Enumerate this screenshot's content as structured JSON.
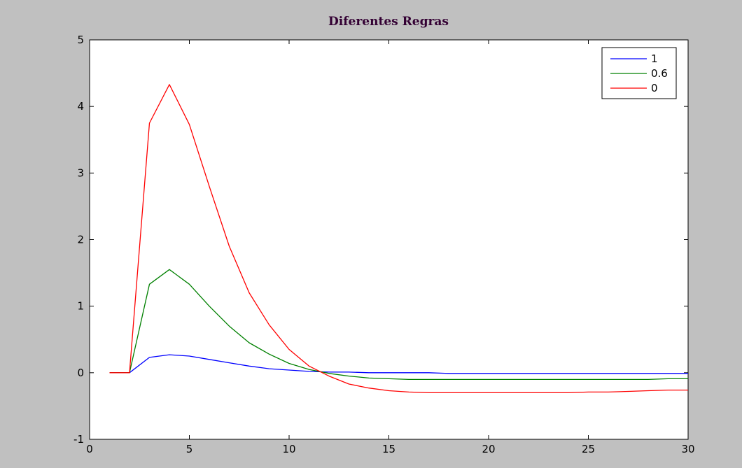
{
  "chart_data": {
    "type": "line",
    "title": "Diferentes Regras",
    "xlabel": "",
    "ylabel": "",
    "xlim": [
      0,
      30
    ],
    "ylim": [
      -1,
      5
    ],
    "xticks": [
      0,
      5,
      10,
      15,
      20,
      25,
      30
    ],
    "xtick_labels": [
      "0",
      "5",
      "10",
      "15",
      "20",
      "25",
      "30"
    ],
    "yticks": [
      -1,
      0,
      1,
      2,
      3,
      4,
      5
    ],
    "ytick_labels": [
      "-1",
      "0",
      "1",
      "2",
      "3",
      "4",
      "5"
    ],
    "grid": false,
    "legend_position": "top-right",
    "x": [
      1,
      2,
      3,
      4,
      5,
      6,
      7,
      8,
      9,
      10,
      11,
      12,
      13,
      14,
      15,
      16,
      17,
      18,
      19,
      20,
      21,
      22,
      23,
      24,
      25,
      26,
      27,
      28,
      29,
      30
    ],
    "series": [
      {
        "name": "1",
        "color": "#0000ff",
        "values": [
          0,
          0,
          0.23,
          0.27,
          0.25,
          0.2,
          0.15,
          0.1,
          0.06,
          0.04,
          0.02,
          0.01,
          0.01,
          0,
          0,
          0,
          0,
          -0.01,
          -0.01,
          -0.01,
          -0.01,
          -0.01,
          -0.01,
          -0.01,
          -0.01,
          -0.01,
          -0.01,
          -0.01,
          -0.01,
          -0.01
        ]
      },
      {
        "name": "0.6",
        "color": "#008000",
        "values": [
          0,
          0,
          1.33,
          1.55,
          1.33,
          1.0,
          0.7,
          0.45,
          0.28,
          0.14,
          0.05,
          -0.01,
          -0.05,
          -0.08,
          -0.09,
          -0.1,
          -0.1,
          -0.1,
          -0.1,
          -0.1,
          -0.1,
          -0.1,
          -0.1,
          -0.1,
          -0.1,
          -0.1,
          -0.1,
          -0.1,
          -0.09,
          -0.09
        ]
      },
      {
        "name": "0",
        "color": "#ff0000",
        "values": [
          0,
          0,
          3.75,
          4.33,
          3.73,
          2.8,
          1.9,
          1.2,
          0.72,
          0.35,
          0.1,
          -0.05,
          -0.17,
          -0.23,
          -0.27,
          -0.29,
          -0.3,
          -0.3,
          -0.3,
          -0.3,
          -0.3,
          -0.3,
          -0.3,
          -0.3,
          -0.29,
          -0.29,
          -0.28,
          -0.27,
          -0.26,
          -0.26
        ]
      }
    ]
  }
}
